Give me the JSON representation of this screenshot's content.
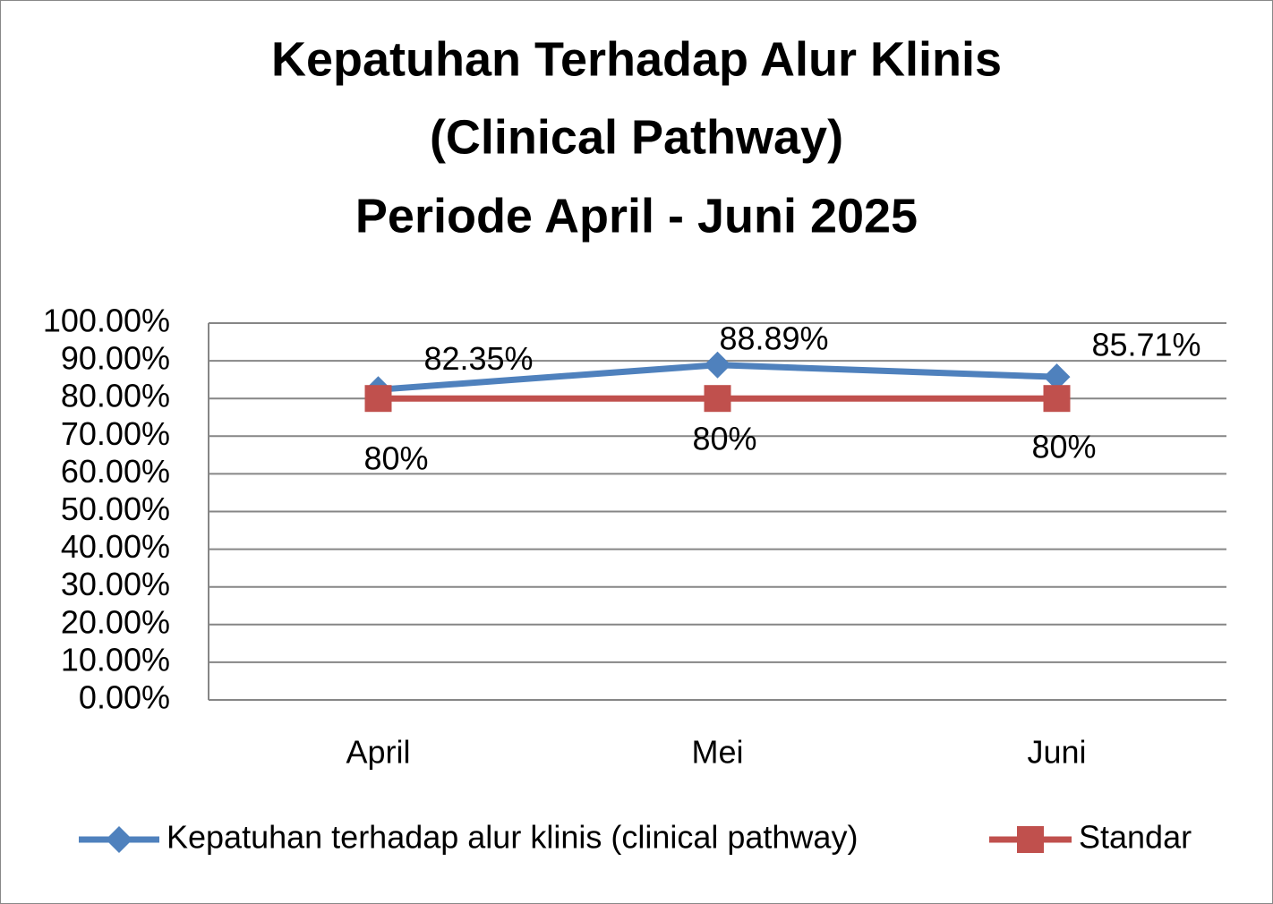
{
  "chart_data": {
    "type": "line",
    "title": [
      "Kepatuhan Terhadap Alur Klinis",
      "(Clinical Pathway)",
      "Periode April - Juni 2025"
    ],
    "categories": [
      "April",
      "Mei",
      "Juni"
    ],
    "series": [
      {
        "name": "Kepatuhan terhadap alur klinis (clinical pathway)",
        "color": "#4f81bd",
        "marker": "diamond",
        "values": [
          82.35,
          88.89,
          85.71
        ],
        "value_labels": [
          "82.35%",
          "88.89%",
          "85.71%"
        ]
      },
      {
        "name": "Standar",
        "color": "#c0504d",
        "marker": "square",
        "values": [
          80,
          80,
          80
        ],
        "value_labels": [
          "80%",
          "80%",
          "80%"
        ]
      }
    ],
    "ylim": [
      0,
      100
    ],
    "yticks": [
      {
        "value": 0,
        "label": "0.00%"
      },
      {
        "value": 10,
        "label": "10.00%"
      },
      {
        "value": 20,
        "label": "20.00%"
      },
      {
        "value": 30,
        "label": "30.00%"
      },
      {
        "value": 40,
        "label": "40.00%"
      },
      {
        "value": 50,
        "label": "50.00%"
      },
      {
        "value": 60,
        "label": "60.00%"
      },
      {
        "value": 70,
        "label": "70.00%"
      },
      {
        "value": 80,
        "label": "80.00%"
      },
      {
        "value": 90,
        "label": "90.00%"
      },
      {
        "value": 100,
        "label": "100.00%"
      }
    ],
    "grid": true,
    "legend": "bottom"
  }
}
